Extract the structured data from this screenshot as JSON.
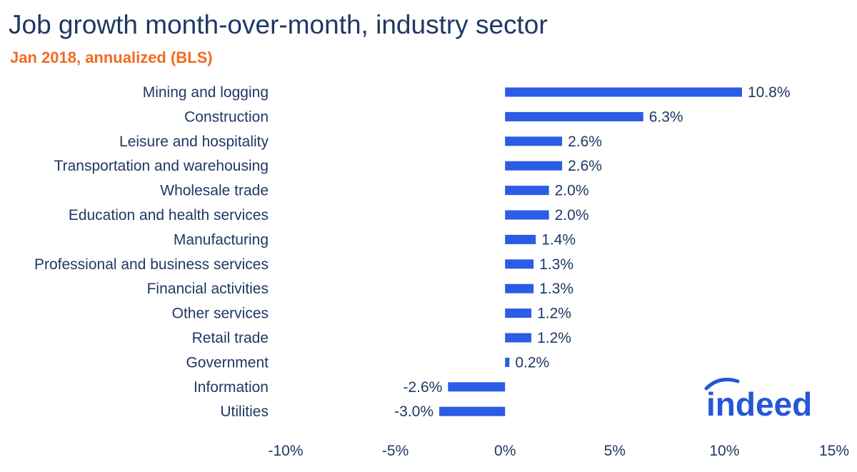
{
  "title": "Job growth month-over-month, industry sector",
  "subtitle": "Jan 2018, annualized (BLS)",
  "logo_text": "indeed",
  "colors": {
    "bar": "#2b5ce6",
    "text": "#1f3864",
    "subtitle": "#f26b21",
    "logo": "#2557d6"
  },
  "chart_data": {
    "type": "bar",
    "orientation": "horizontal",
    "title": "Job growth month-over-month, industry sector",
    "subtitle": "Jan 2018, annualized (BLS)",
    "categories": [
      "Mining and logging",
      "Construction",
      "Leisure and hospitality",
      "Transportation and warehousing",
      "Wholesale trade",
      "Education and health services",
      "Manufacturing",
      "Professional and business services",
      "Financial activities",
      "Other services",
      "Retail trade",
      "Government",
      "Information",
      "Utilities"
    ],
    "values": [
      10.8,
      6.3,
      2.6,
      2.6,
      2.0,
      2.0,
      1.4,
      1.3,
      1.3,
      1.2,
      1.2,
      0.2,
      -2.6,
      -3.0
    ],
    "value_labels": [
      "10.8%",
      "6.3%",
      "2.6%",
      "2.6%",
      "2.0%",
      "2.0%",
      "1.4%",
      "1.3%",
      "1.3%",
      "1.2%",
      "1.2%",
      "0.2%",
      "-2.6%",
      "-3.0%"
    ],
    "xlim": [
      -10,
      15
    ],
    "xticks": [
      -10,
      -5,
      0,
      5,
      10,
      15
    ],
    "xtick_labels": [
      "-10%",
      "-5%",
      "0%",
      "5%",
      "10%",
      "15%"
    ],
    "grid": false,
    "legend": "none"
  }
}
